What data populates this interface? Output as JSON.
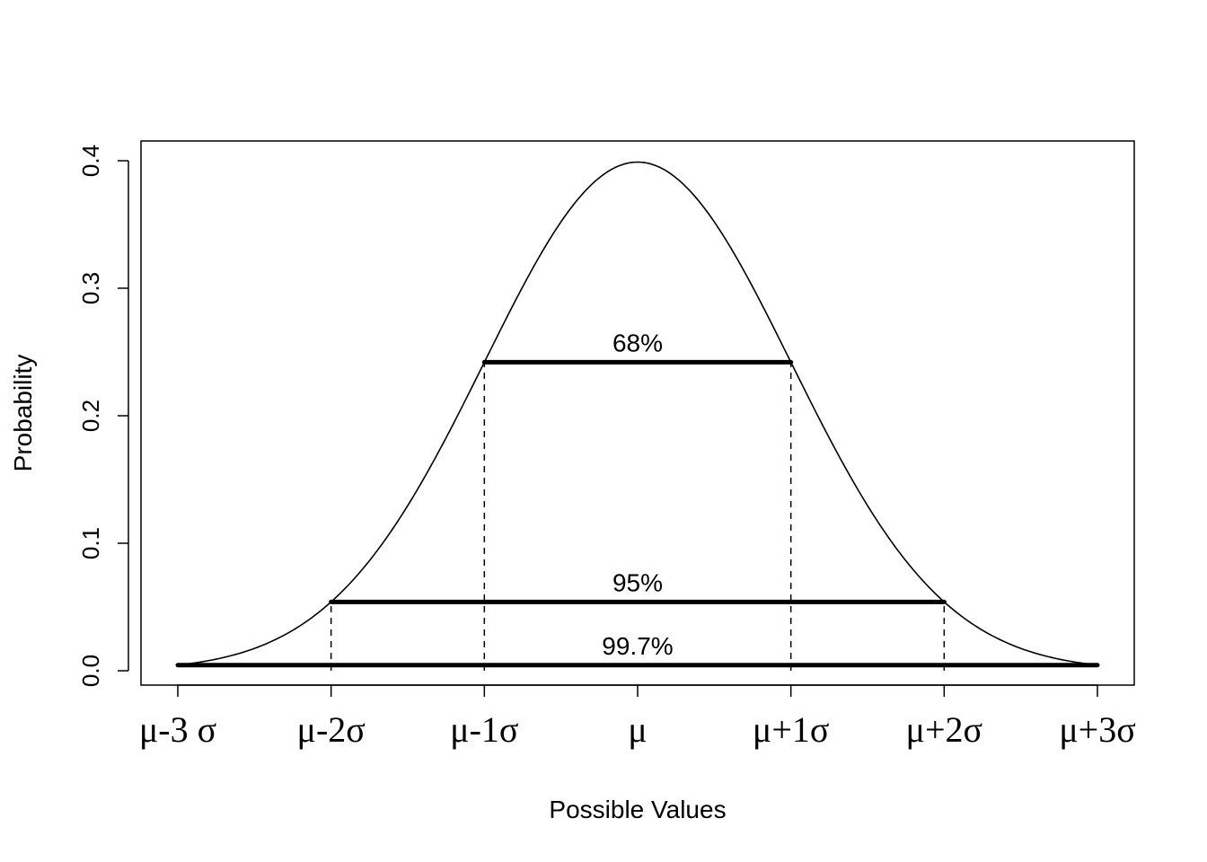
{
  "chart_data": {
    "type": "line",
    "title": "",
    "xlabel": "Possible Values",
    "ylabel": "Probability",
    "xlim": [
      -3,
      3
    ],
    "ylim": [
      0,
      0.4
    ],
    "x_ticks": [
      -3,
      -2,
      -1,
      0,
      1,
      2,
      3
    ],
    "x_tick_labels": [
      "μ-3 σ",
      "μ-2σ",
      "μ-1σ",
      "μ",
      "μ+1σ",
      "μ+2σ",
      "μ+3σ"
    ],
    "y_ticks": [
      0.0,
      0.1,
      0.2,
      0.3,
      0.4
    ],
    "y_tick_labels": [
      "0.0",
      "0.1",
      "0.2",
      "0.3",
      "0.4"
    ],
    "grid": false,
    "legend": "none",
    "curve": "standard normal density",
    "ranges": [
      {
        "label": "68%",
        "from": -1,
        "to": 1,
        "height": 0.242
      },
      {
        "label": "95%",
        "from": -2,
        "to": 2,
        "height": 0.054
      },
      {
        "label": "99.7%",
        "from": -3,
        "to": 3,
        "height": 0.0044
      }
    ],
    "dashed_verticals": [
      -2,
      -1,
      1,
      2
    ]
  }
}
